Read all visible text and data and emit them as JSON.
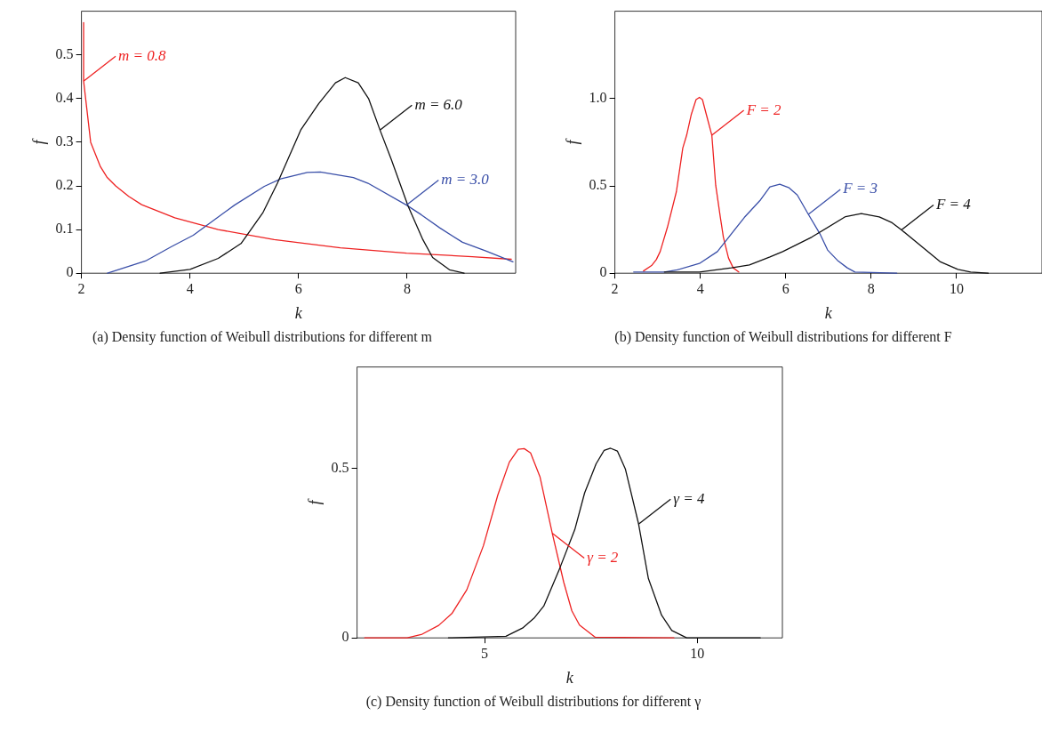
{
  "chart_data": [
    {
      "type": "line",
      "title": "(a) Density function of Weibull distributions for different m",
      "xlabel": "k",
      "ylabel": "f",
      "xlim": [
        2,
        10
      ],
      "ylim": [
        0,
        0.6
      ],
      "xticks": [
        2,
        4,
        6,
        8
      ],
      "yticks": [
        0,
        0.1,
        0.2,
        0.3,
        0.4,
        0.5
      ],
      "legend": false,
      "marker": "none",
      "line_style": "solid",
      "series": [
        {
          "name": "m = 0.8",
          "color": "#ee2222",
          "x": [
            2.04,
            2.04,
            2.17,
            2.35,
            2.47,
            2.63,
            2.87,
            3.11,
            3.72,
            4.52,
            5.55,
            6.77,
            7.99,
            9.2,
            9.92
          ],
          "values": [
            0.574,
            0.44,
            0.3,
            0.244,
            0.22,
            0.2,
            0.176,
            0.157,
            0.127,
            0.1,
            0.077,
            0.058,
            0.046,
            0.038,
            0.032
          ]
        },
        {
          "name": "m = 3.0",
          "color": "#3a4fa8",
          "x": [
            2.48,
            3.18,
            3.66,
            4.06,
            4.82,
            5.37,
            5.67,
            6.16,
            6.4,
            7.01,
            7.28,
            7.99,
            8.26,
            8.6,
            9.02,
            9.45,
            9.95
          ],
          "values": [
            0,
            0.028,
            0.061,
            0.087,
            0.156,
            0.199,
            0.216,
            0.231,
            0.232,
            0.219,
            0.206,
            0.156,
            0.134,
            0.104,
            0.071,
            0.051,
            0.026
          ]
        },
        {
          "name": "m = 6.0",
          "color": "#111111",
          "x": [
            3.45,
            4.0,
            4.52,
            4.94,
            5.34,
            5.61,
            6.04,
            6.37,
            6.68,
            6.86,
            7.1,
            7.29,
            7.5,
            7.71,
            8.02,
            8.29,
            8.47,
            8.78,
            9.05
          ],
          "values": [
            0,
            0.009,
            0.034,
            0.068,
            0.138,
            0.206,
            0.328,
            0.388,
            0.436,
            0.448,
            0.436,
            0.4,
            0.328,
            0.26,
            0.153,
            0.077,
            0.036,
            0.008,
            0
          ]
        }
      ]
    },
    {
      "type": "line",
      "title": "(b) Density function of Weibull distributions for different F",
      "xlabel": "k",
      "ylabel": "f",
      "xlim": [
        2,
        12
      ],
      "ylim": [
        0,
        1.5
      ],
      "xticks": [
        2,
        4,
        6,
        8,
        10
      ],
      "yticks": [
        0,
        0.5,
        {
          "value": 1,
          "label": "1.0"
        }
      ],
      "legend": false,
      "marker": "none",
      "line_style": "solid",
      "series": [
        {
          "name": "F = 2",
          "color": "#ee2222",
          "x": [
            2.67,
            2.86,
            2.97,
            3.06,
            3.23,
            3.44,
            3.59,
            3.68,
            3.79,
            3.9,
            3.98,
            4.05,
            4.14,
            4.27,
            4.36,
            4.47,
            4.54,
            4.66,
            4.77,
            4.9
          ],
          "values": [
            0.013,
            0.044,
            0.078,
            0.124,
            0.263,
            0.467,
            0.717,
            0.79,
            0.91,
            0.994,
            1.007,
            0.994,
            0.91,
            0.79,
            0.504,
            0.319,
            0.207,
            0.087,
            0.031,
            0.007
          ]
        },
        {
          "name": "F = 3",
          "color": "#3a4fa8",
          "x": [
            2.44,
            3.16,
            3.46,
            3.98,
            4.4,
            5.03,
            5.41,
            5.63,
            5.86,
            6.08,
            6.27,
            6.53,
            6.8,
            6.98,
            7.21,
            7.44,
            7.62,
            8.6
          ],
          "values": [
            0.007,
            0.007,
            0.019,
            0.056,
            0.124,
            0.319,
            0.42,
            0.494,
            0.509,
            0.489,
            0.448,
            0.337,
            0.226,
            0.133,
            0.074,
            0.031,
            0.007,
            0
          ]
        },
        {
          "name": "F = 4",
          "color": "#111111",
          "x": [
            3.16,
            3.98,
            4.73,
            5.15,
            5.63,
            5.93,
            6.61,
            7.4,
            7.77,
            8.19,
            8.49,
            8.71,
            9.61,
            10.03,
            10.33,
            10.74
          ],
          "values": [
            0.007,
            0.007,
            0.031,
            0.048,
            0.093,
            0.124,
            0.207,
            0.324,
            0.341,
            0.322,
            0.289,
            0.248,
            0.067,
            0.022,
            0.007,
            0
          ]
        }
      ]
    },
    {
      "type": "line",
      "title": "(c) Density function of Weibull distributions for different γ",
      "xlabel": "k",
      "ylabel": "f",
      "xlim": [
        2,
        12
      ],
      "ylim": [
        0,
        0.8
      ],
      "xticks": [
        5,
        10
      ],
      "yticks": [
        0,
        0.5
      ],
      "legend": false,
      "marker": "none",
      "line_style": "solid",
      "series": [
        {
          "name": "γ = 2",
          "color": "#ee2222",
          "x": [
            2.18,
            3.18,
            3.53,
            3.92,
            4.23,
            4.58,
            4.97,
            5.31,
            5.58,
            5.79,
            5.93,
            6.08,
            6.3,
            6.59,
            6.86,
            7.05,
            7.23,
            7.6,
            9.45
          ],
          "values": [
            0,
            0,
            0.011,
            0.037,
            0.072,
            0.142,
            0.272,
            0.422,
            0.519,
            0.557,
            0.559,
            0.546,
            0.476,
            0.309,
            0.164,
            0.08,
            0.038,
            0.002,
            0
          ]
        },
        {
          "name": "γ = 4",
          "color": "#111111",
          "x": [
            4.15,
            5.5,
            5.89,
            6.16,
            6.39,
            6.77,
            7.12,
            7.35,
            7.62,
            7.81,
            7.96,
            8.12,
            8.31,
            8.62,
            8.85,
            9.16,
            9.4,
            9.75,
            11.48
          ],
          "values": [
            0,
            0.005,
            0.029,
            0.058,
            0.094,
            0.207,
            0.32,
            0.428,
            0.514,
            0.554,
            0.56,
            0.552,
            0.498,
            0.336,
            0.175,
            0.067,
            0.022,
            0,
            0
          ]
        }
      ]
    }
  ]
}
